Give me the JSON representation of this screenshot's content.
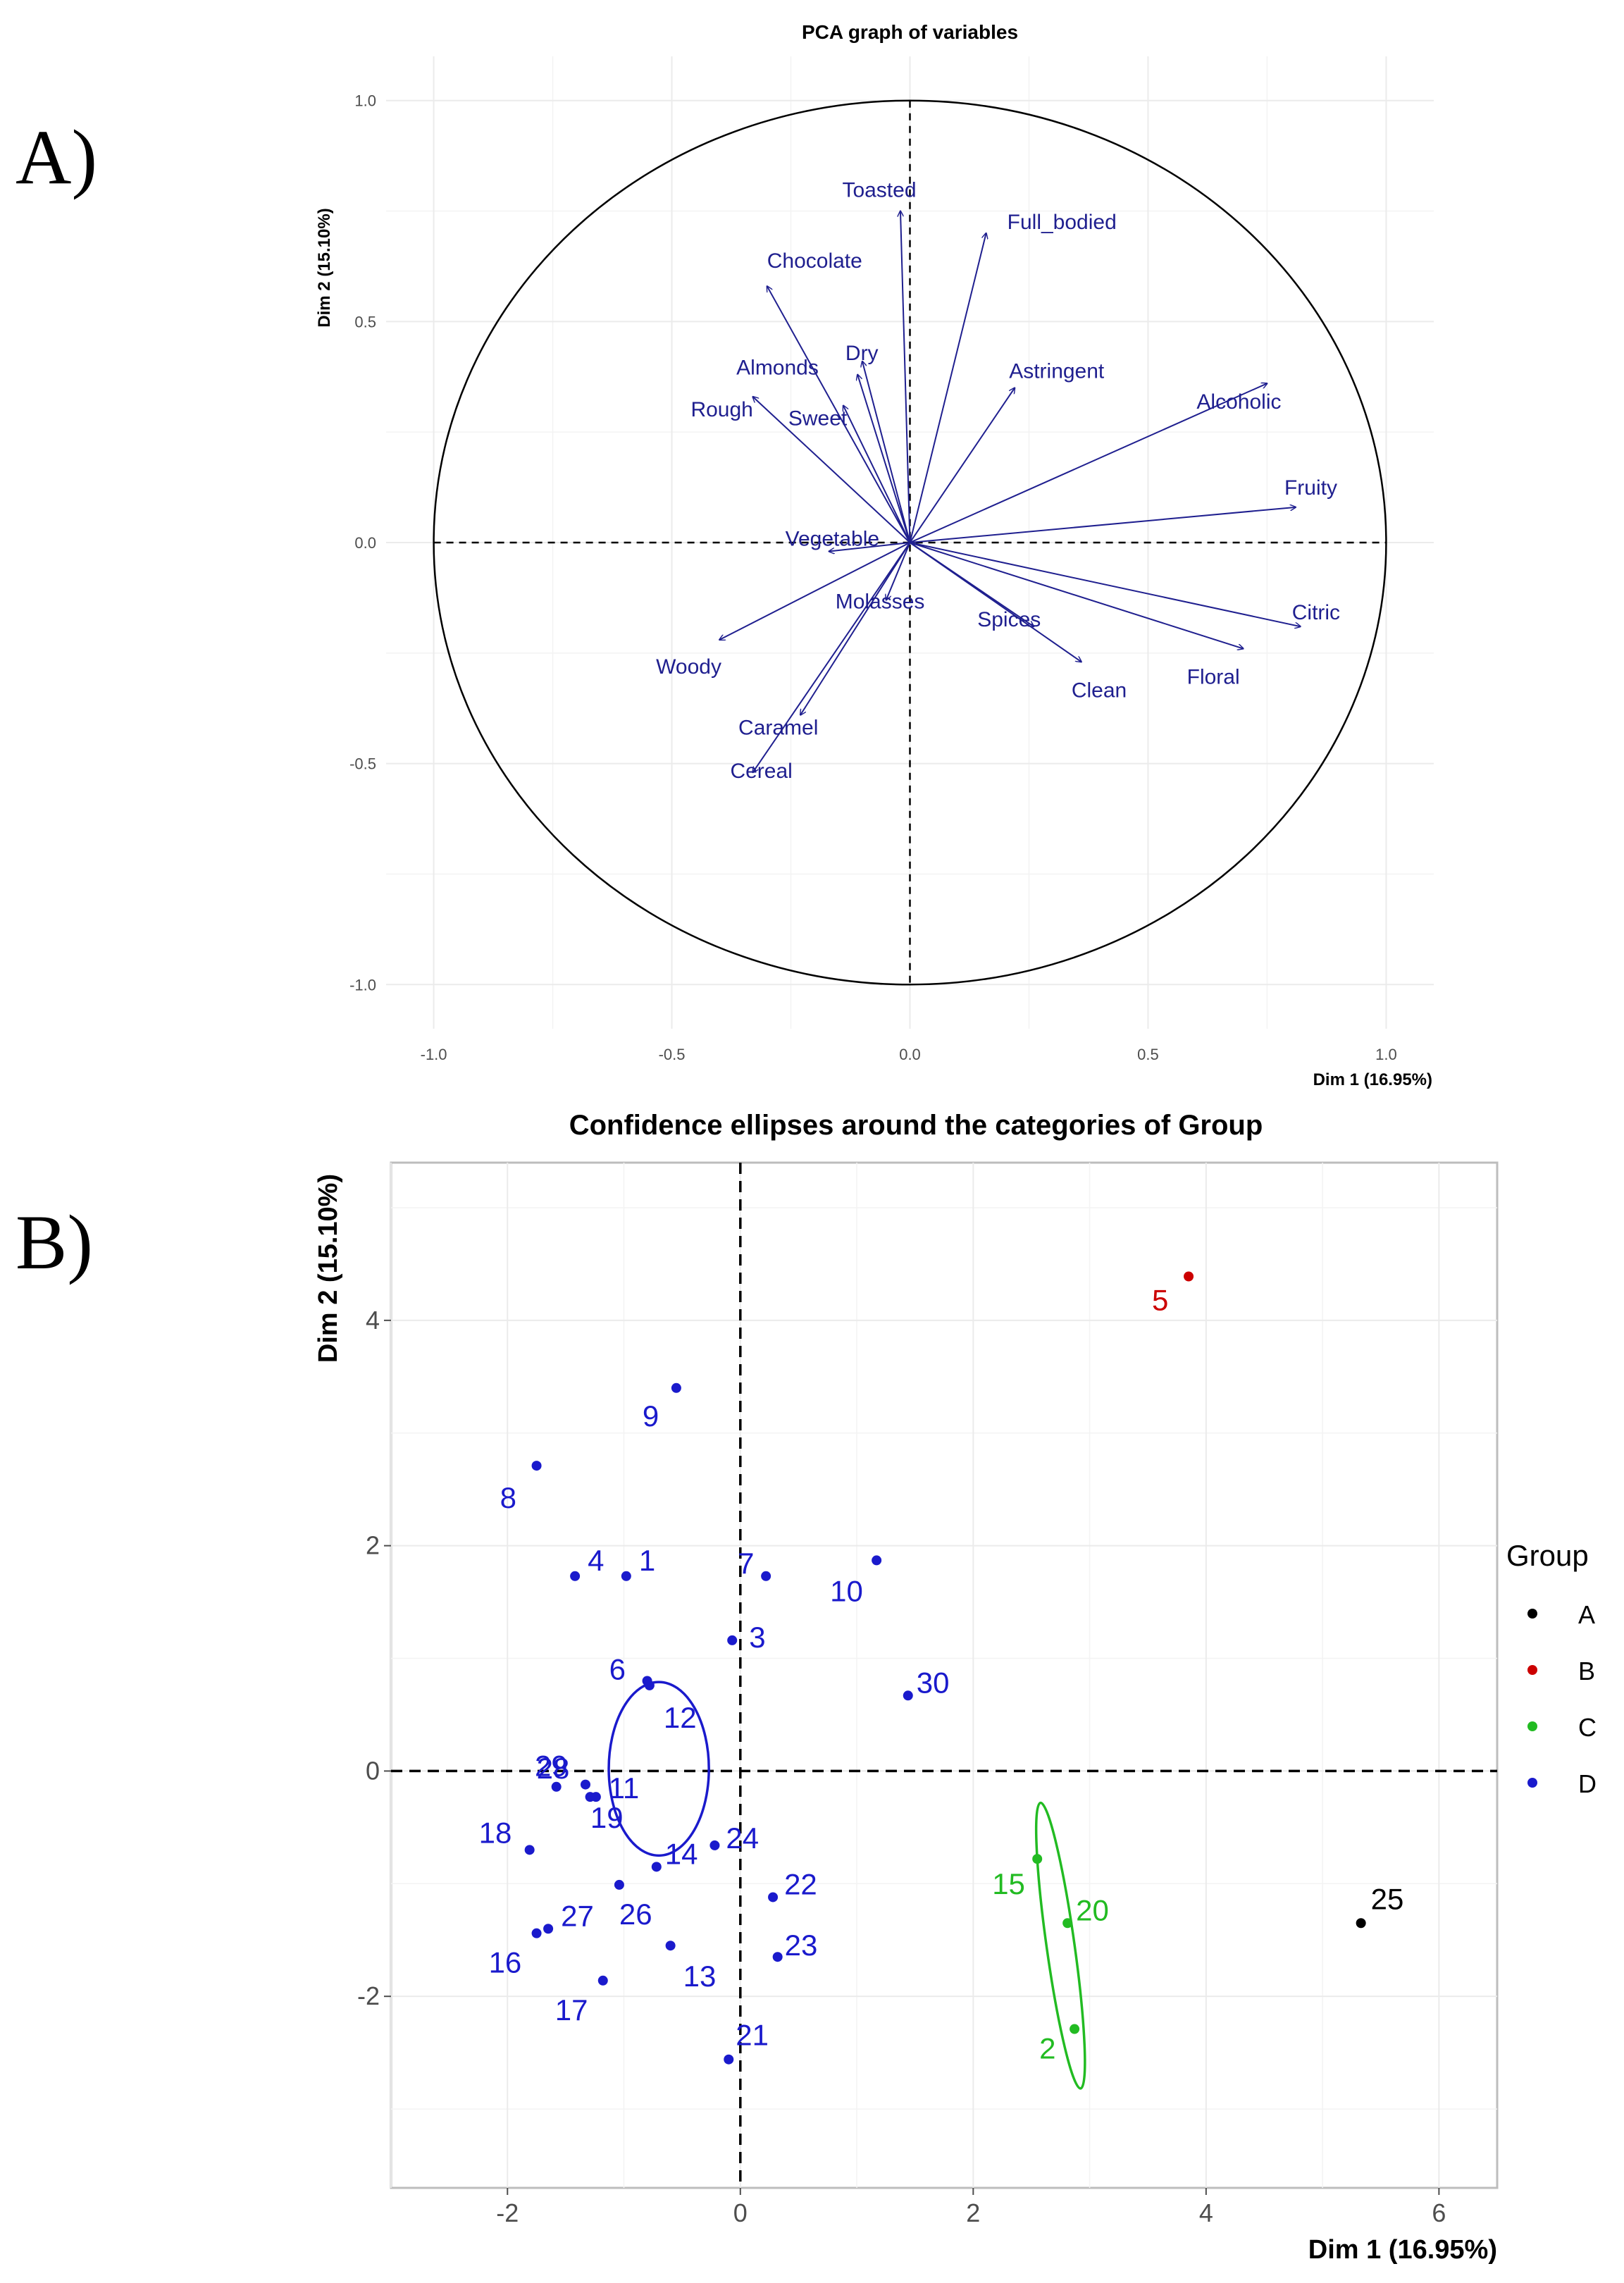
{
  "panels": {
    "a_label": "A)",
    "b_label": "B)"
  },
  "chart_data": [
    {
      "type": "scatter",
      "title": "PCA graph of variables",
      "xlabel": "Dim 1 (16.95%)",
      "ylabel": "Dim 2 (15.10%)",
      "xlim": [
        -1.1,
        1.1
      ],
      "ylim": [
        -1.1,
        1.1
      ],
      "x_ticks": [
        "-1.0",
        "-0.5",
        "0.0",
        "0.5",
        "1.0"
      ],
      "y_ticks": [
        "-1.0",
        "-0.5",
        "0.0",
        "0.5",
        "1.0"
      ],
      "x_tick_values": [
        -1.0,
        -0.5,
        0.0,
        0.5,
        1.0
      ],
      "y_tick_values": [
        -1.0,
        -0.5,
        0.0,
        0.5,
        1.0
      ],
      "grid": true,
      "arrow_color": "#1f1f8f",
      "variables": [
        {
          "name": "Toasted",
          "x": -0.02,
          "y": 0.75
        },
        {
          "name": "Full_bodied",
          "x": 0.16,
          "y": 0.7
        },
        {
          "name": "Chocolate",
          "x": -0.3,
          "y": 0.58
        },
        {
          "name": "Dry",
          "x": -0.1,
          "y": 0.41
        },
        {
          "name": "Almonds",
          "x": -0.11,
          "y": 0.38
        },
        {
          "name": "Astringent",
          "x": 0.22,
          "y": 0.35
        },
        {
          "name": "Alcoholic",
          "x": 0.75,
          "y": 0.36
        },
        {
          "name": "Rough",
          "x": -0.33,
          "y": 0.33
        },
        {
          "name": "Sweet",
          "x": -0.14,
          "y": 0.31
        },
        {
          "name": "Fruity",
          "x": 0.81,
          "y": 0.08
        },
        {
          "name": "Vegetable",
          "x": -0.17,
          "y": -0.02
        },
        {
          "name": "Molasses",
          "x": -0.05,
          "y": -0.13
        },
        {
          "name": "Spices",
          "x": 0.26,
          "y": -0.19
        },
        {
          "name": "Citric",
          "x": 0.82,
          "y": -0.19
        },
        {
          "name": "Woody",
          "x": -0.4,
          "y": -0.22
        },
        {
          "name": "Clean",
          "x": 0.36,
          "y": -0.27
        },
        {
          "name": "Floral",
          "x": 0.7,
          "y": -0.24
        },
        {
          "name": "Caramel",
          "x": -0.23,
          "y": -0.39
        },
        {
          "name": "Cereal",
          "x": -0.33,
          "y": -0.52
        }
      ]
    },
    {
      "type": "scatter",
      "title": "Confidence ellipses around the categories of Group",
      "xlabel": "Dim 1 (16.95%)",
      "ylabel": "Dim 2 (15.10%)",
      "xlim": [
        -3.0,
        6.5
      ],
      "ylim": [
        -3.7,
        5.4
      ],
      "x_ticks": [
        "-2",
        "0",
        "2",
        "4",
        "6"
      ],
      "y_ticks": [
        "-2",
        "0",
        "2",
        "4"
      ],
      "x_tick_values": [
        -2,
        0,
        2,
        4,
        6
      ],
      "y_tick_values": [
        -2,
        0,
        2,
        4
      ],
      "grid": true,
      "legend": {
        "title": "Group",
        "position": "right",
        "entries": [
          {
            "name": "A",
            "color": "#000000"
          },
          {
            "name": "B",
            "color": "#cc0000"
          },
          {
            "name": "C",
            "color": "#22bb22"
          },
          {
            "name": "D",
            "color": "#1a1acc"
          }
        ]
      },
      "ellipses": [
        {
          "group": "D",
          "cx": -0.7,
          "cy": 0.02,
          "rx": 0.43,
          "ry": 0.77
        },
        {
          "group": "C",
          "cx": 2.75,
          "cy": -1.55,
          "rx": 0.12,
          "ry": 1.28
        }
      ],
      "points": [
        {
          "id": "1",
          "group": "D",
          "x": -0.98,
          "y": 1.73
        },
        {
          "id": "2",
          "group": "C",
          "x": 2.87,
          "y": -2.29
        },
        {
          "id": "3",
          "group": "D",
          "x": -0.07,
          "y": 1.16
        },
        {
          "id": "4",
          "group": "D",
          "x": -1.42,
          "y": 1.73
        },
        {
          "id": "5",
          "group": "B",
          "x": 3.85,
          "y": 4.39
        },
        {
          "id": "6",
          "group": "D",
          "x": -0.8,
          "y": 0.8
        },
        {
          "id": "7",
          "group": "D",
          "x": 0.22,
          "y": 1.73
        },
        {
          "id": "8",
          "group": "D",
          "x": -1.75,
          "y": 2.71
        },
        {
          "id": "9",
          "group": "D",
          "x": -0.55,
          "y": 3.4
        },
        {
          "id": "10",
          "group": "D",
          "x": 1.17,
          "y": 1.87
        },
        {
          "id": "11",
          "group": "D",
          "x": -1.29,
          "y": -0.23
        },
        {
          "id": "12",
          "group": "D",
          "x": -0.78,
          "y": 0.76
        },
        {
          "id": "13",
          "group": "D",
          "x": -0.6,
          "y": -1.55
        },
        {
          "id": "14",
          "group": "D",
          "x": -0.72,
          "y": -0.85
        },
        {
          "id": "15",
          "group": "C",
          "x": 2.55,
          "y": -0.78
        },
        {
          "id": "16",
          "group": "D",
          "x": -1.75,
          "y": -1.44
        },
        {
          "id": "17",
          "group": "D",
          "x": -1.18,
          "y": -1.86
        },
        {
          "id": "18",
          "group": "D",
          "x": -1.81,
          "y": -0.7
        },
        {
          "id": "19",
          "group": "D",
          "x": -1.24,
          "y": -0.23
        },
        {
          "id": "20",
          "group": "C",
          "x": 2.81,
          "y": -1.35
        },
        {
          "id": "21",
          "group": "D",
          "x": -0.1,
          "y": -2.56
        },
        {
          "id": "22",
          "group": "D",
          "x": 0.28,
          "y": -1.12
        },
        {
          "id": "23",
          "group": "D",
          "x": 0.32,
          "y": -1.65
        },
        {
          "id": "24",
          "group": "D",
          "x": -0.22,
          "y": -0.66
        },
        {
          "id": "25",
          "group": "A",
          "x": 5.33,
          "y": -1.35
        },
        {
          "id": "26",
          "group": "D",
          "x": -1.04,
          "y": -1.01
        },
        {
          "id": "27",
          "group": "D",
          "x": -1.65,
          "y": -1.4
        },
        {
          "id": "28",
          "group": "D",
          "x": -1.58,
          "y": -0.14
        },
        {
          "id": "29",
          "group": "D",
          "x": -1.33,
          "y": -0.12
        },
        {
          "id": "30",
          "group": "D",
          "x": 1.44,
          "y": 0.67
        }
      ]
    }
  ]
}
